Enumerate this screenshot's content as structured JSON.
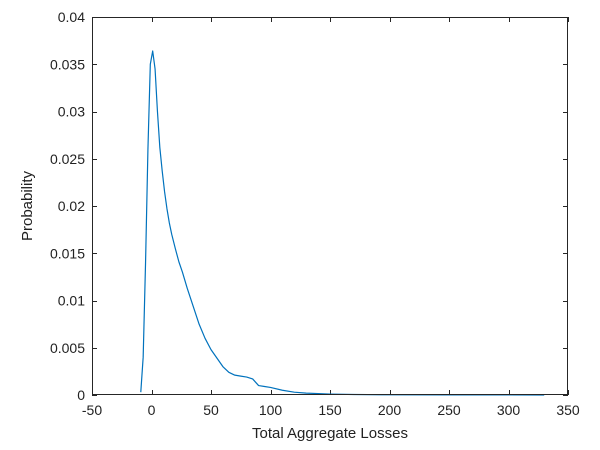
{
  "chart_data": {
    "type": "line",
    "title": "",
    "xlabel": "Total Aggregate Losses",
    "ylabel": "Probability",
    "xlim": [
      -50,
      350
    ],
    "ylim": [
      0,
      0.04
    ],
    "xticks": [
      -50,
      0,
      50,
      100,
      150,
      200,
      250,
      300,
      350
    ],
    "xtick_labels": [
      "-50",
      "0",
      "50",
      "100",
      "150",
      "200",
      "250",
      "300",
      "350"
    ],
    "yticks": [
      0,
      0.005,
      0.01,
      0.015,
      0.02,
      0.025,
      0.03,
      0.035,
      0.04
    ],
    "ytick_labels": [
      "0",
      "0.005",
      "0.01",
      "0.015",
      "0.02",
      "0.025",
      "0.03",
      "0.035",
      "0.04"
    ],
    "grid": false,
    "legend": "none",
    "series": [
      {
        "color": "#0072BD",
        "x": [
          -9,
          -7,
          -5,
          -3,
          -1,
          1,
          3,
          5,
          7,
          9,
          11,
          13,
          15,
          17,
          20,
          23,
          26,
          30,
          35,
          40,
          45,
          50,
          55,
          60,
          65,
          70,
          75,
          80,
          85,
          90,
          95,
          100,
          110,
          120,
          130,
          140,
          150,
          170,
          200,
          250,
          300,
          330
        ],
        "y": [
          0.0003,
          0.004,
          0.014,
          0.026,
          0.035,
          0.0364,
          0.0345,
          0.03,
          0.0262,
          0.0237,
          0.0215,
          0.0197,
          0.0182,
          0.017,
          0.0155,
          0.0141,
          0.013,
          0.0113,
          0.0094,
          0.0075,
          0.006,
          0.0048,
          0.0039,
          0.003,
          0.0024,
          0.0021,
          0.002,
          0.0019,
          0.0017,
          0.001,
          0.0009,
          0.0008,
          0.0005,
          0.0003,
          0.0002,
          0.00015,
          0.0001,
          5e-05,
          2e-05,
          1e-05,
          5e-06,
          3e-06
        ]
      }
    ]
  }
}
